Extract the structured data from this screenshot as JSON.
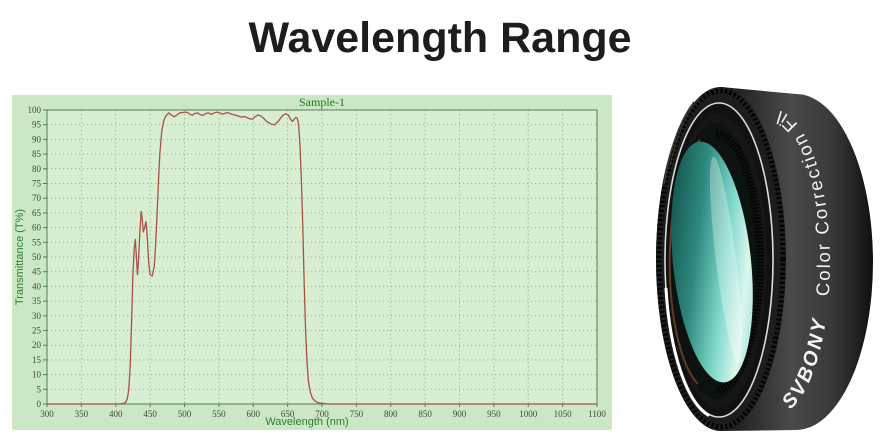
{
  "page": {
    "title": "Wavelength Range"
  },
  "chart_data": {
    "type": "line",
    "title": "Sample-1",
    "xlabel": "Wavelength (nm)",
    "ylabel": "Transmittance (T%)",
    "xlim": [
      300,
      1100
    ],
    "ylim": [
      0,
      100
    ],
    "xtick_step": 50,
    "ytick_step": 5,
    "grid": true,
    "legend_position": "none",
    "colors": {
      "panel_bg": "#cbe7c6",
      "plot_bg": "#d8eed3",
      "grid": "#8cbd8c",
      "border": "#517f51",
      "tick_label": "#3c4a3c",
      "axis_title": "#2e7d32",
      "title": "#217a21",
      "curve": "#a85146"
    },
    "series": [
      {
        "name": "Sample-1",
        "points": [
          [
            300,
            0
          ],
          [
            405,
            0
          ],
          [
            412,
            0.2
          ],
          [
            415,
            0.8
          ],
          [
            417,
            2
          ],
          [
            419,
            5
          ],
          [
            421,
            13
          ],
          [
            423,
            28
          ],
          [
            425,
            44
          ],
          [
            427,
            53
          ],
          [
            428.5,
            56
          ],
          [
            430,
            50
          ],
          [
            431.5,
            44
          ],
          [
            433,
            48
          ],
          [
            435,
            58
          ],
          [
            437,
            65.5
          ],
          [
            438.5,
            63
          ],
          [
            440,
            58.5
          ],
          [
            442,
            60
          ],
          [
            444,
            62
          ],
          [
            446,
            56
          ],
          [
            448,
            47.5
          ],
          [
            450,
            44
          ],
          [
            453,
            43.5
          ],
          [
            456,
            47
          ],
          [
            458,
            54
          ],
          [
            460,
            64
          ],
          [
            462,
            75
          ],
          [
            464,
            85
          ],
          [
            467,
            93
          ],
          [
            470,
            96.5
          ],
          [
            473,
            98
          ],
          [
            477,
            99
          ],
          [
            481,
            98.3
          ],
          [
            485,
            97.7
          ],
          [
            489,
            98.3
          ],
          [
            493,
            99
          ],
          [
            498,
            99.2
          ],
          [
            503,
            99.3
          ],
          [
            507,
            98.7
          ],
          [
            511,
            98.2
          ],
          [
            515,
            98.8
          ],
          [
            519,
            99
          ],
          [
            523,
            98.4
          ],
          [
            527,
            98.2
          ],
          [
            531,
            98.8
          ],
          [
            535,
            99
          ],
          [
            539,
            98.5
          ],
          [
            543,
            99
          ],
          [
            547,
            99.3
          ],
          [
            551,
            99
          ],
          [
            555,
            98.6
          ],
          [
            559,
            98.9
          ],
          [
            563,
            99.1
          ],
          [
            567,
            98.7
          ],
          [
            571,
            98.4
          ],
          [
            575,
            98.2
          ],
          [
            579,
            97.9
          ],
          [
            583,
            97.6
          ],
          [
            587,
            97.8
          ],
          [
            591,
            97.4
          ],
          [
            595,
            97
          ],
          [
            599,
            96.9
          ],
          [
            603,
            97.8
          ],
          [
            607,
            98.3
          ],
          [
            611,
            98
          ],
          [
            615,
            97.2
          ],
          [
            619,
            96.2
          ],
          [
            623,
            95.6
          ],
          [
            627,
            95.1
          ],
          [
            631,
            95
          ],
          [
            635,
            95.8
          ],
          [
            639,
            97
          ],
          [
            643,
            98.2
          ],
          [
            647,
            98.7
          ],
          [
            651,
            98.3
          ],
          [
            654,
            97
          ],
          [
            657,
            96.1
          ],
          [
            660,
            97
          ],
          [
            662,
            97.5
          ],
          [
            664,
            97.2
          ],
          [
            666,
            95
          ],
          [
            668,
            88
          ],
          [
            670,
            76
          ],
          [
            672,
            60
          ],
          [
            674,
            42
          ],
          [
            676,
            26
          ],
          [
            678,
            15
          ],
          [
            680,
            8
          ],
          [
            683,
            4
          ],
          [
            686,
            2
          ],
          [
            690,
            1
          ],
          [
            695,
            0.4
          ],
          [
            700,
            0.2
          ],
          [
            710,
            0
          ],
          [
            1100,
            0
          ]
        ]
      }
    ]
  },
  "product": {
    "brand": "SVBONY",
    "label": "Color Correction Filter",
    "glass_color": "#7fd9cb",
    "body_color": "#1d1d1d",
    "text_color": "#f4f4f4"
  }
}
